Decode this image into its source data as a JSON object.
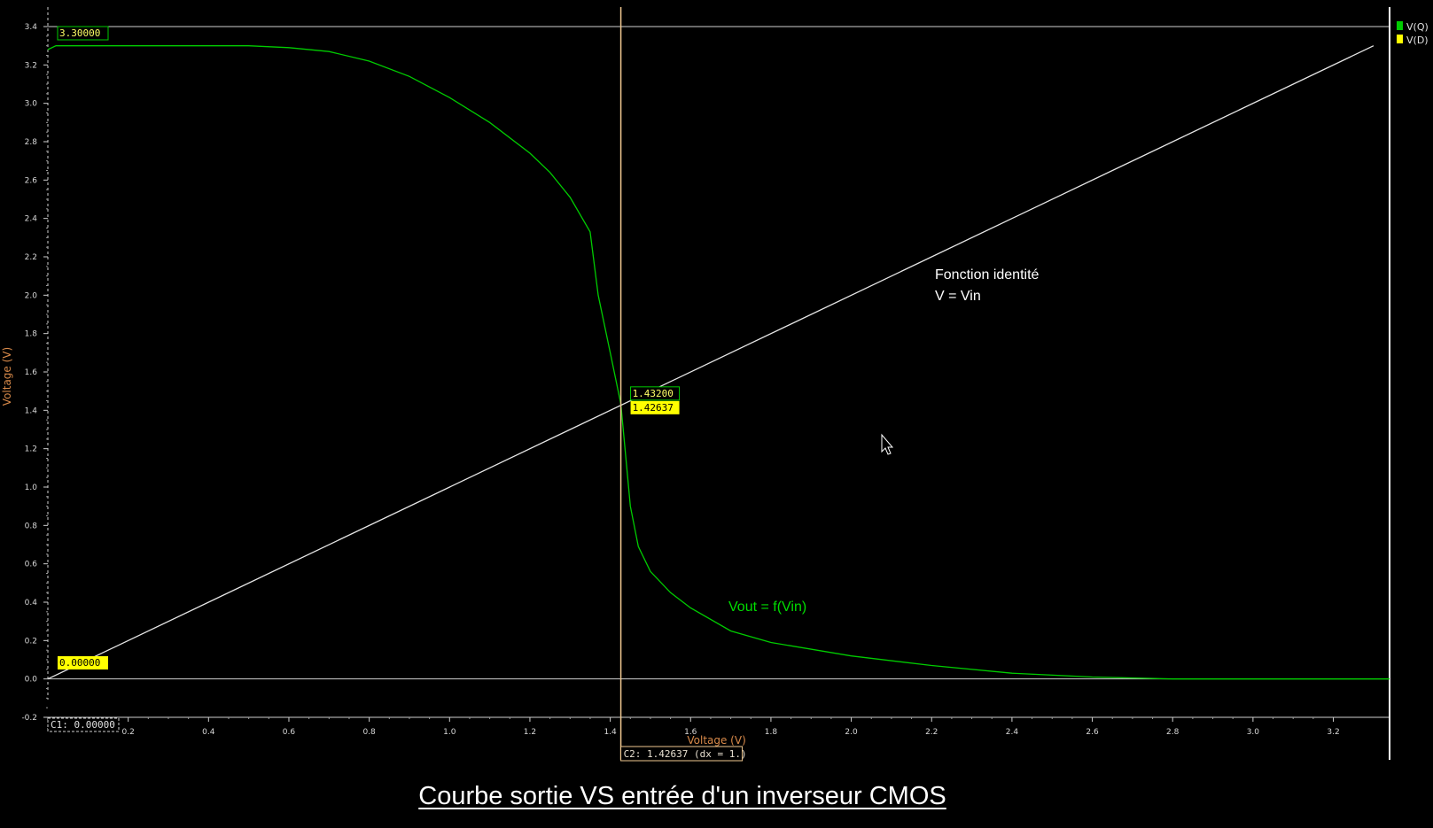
{
  "caption": "Courbe sortie VS entrée d'un inverseur CMOS",
  "legend": [
    {
      "name": "V(Q)",
      "color": "#00cc00"
    },
    {
      "name": "V(D)",
      "color": "#ffff00"
    }
  ],
  "cursors": {
    "c1_label": "C1: 0.00000",
    "c2_label": "C2: 1.42637 (dx = 1.)"
  },
  "value_labels": {
    "top_left": "3.30000",
    "bottom_left": "0.00000",
    "cross_green": "1.43200",
    "cross_yellow": "1.42637"
  },
  "annotations": {
    "identity_line1": "Fonction identité",
    "identity_line2": "V = Vin",
    "vout_label": "Vout = f(Vin)"
  },
  "colors": {
    "background": "#000000",
    "vout": "#00cc00",
    "identity": "#e6e6e6",
    "cursor": "#f0c890",
    "axis_title": "#d98a4a",
    "yellow": "#ffff00"
  },
  "chart_data": {
    "type": "line",
    "xlabel": "Voltage (V)",
    "ylabel": "Voltage (V)",
    "xlim": [
      0,
      3.34
    ],
    "ylim": [
      -0.2,
      3.4
    ],
    "x_ticks": [
      0.2,
      0.4,
      0.6,
      0.8,
      1.0,
      1.2,
      1.4,
      1.6,
      1.8,
      2.0,
      2.2,
      2.4,
      2.6,
      2.8,
      3.0,
      3.2
    ],
    "y_ticks": [
      -0.2,
      0.0,
      0.2,
      0.4,
      0.6,
      0.8,
      1.0,
      1.2,
      1.4,
      1.6,
      1.8,
      2.0,
      2.2,
      2.4,
      2.6,
      2.8,
      3.0,
      3.2,
      3.4
    ],
    "x_tick_labels": [
      "0.2",
      "0.4",
      "0.6",
      "0.8",
      "1.0",
      "1.2",
      "1.4",
      "1.6",
      "1.8",
      "2.0",
      "2.2",
      "2.4",
      "2.6",
      "2.8",
      "3.0",
      "3.2"
    ],
    "y_tick_labels": [
      "-0.2",
      "0.0",
      "0.2",
      "0.4",
      "0.6",
      "0.8",
      "1.0",
      "1.2",
      "1.4",
      "1.6",
      "1.8",
      "2.0",
      "2.2",
      "2.4",
      "2.6",
      "2.8",
      "3.0",
      "3.2",
      "3.4"
    ],
    "reference_lines_y": [
      0.0,
      3.4
    ],
    "cursor_x": 1.42637,
    "series": [
      {
        "name": "V(Q)",
        "color": "#00cc00",
        "x": [
          0.0,
          0.02,
          0.2,
          0.4,
          0.5,
          0.6,
          0.7,
          0.8,
          0.9,
          1.0,
          1.1,
          1.2,
          1.25,
          1.3,
          1.35,
          1.37,
          1.4,
          1.42637,
          1.45,
          1.47,
          1.5,
          1.55,
          1.6,
          1.7,
          1.8,
          2.0,
          2.2,
          2.4,
          2.6,
          2.8,
          3.0,
          3.2,
          3.34
        ],
        "y": [
          3.28,
          3.3,
          3.3,
          3.3,
          3.3,
          3.29,
          3.27,
          3.22,
          3.14,
          3.03,
          2.9,
          2.74,
          2.64,
          2.51,
          2.33,
          2.0,
          1.7,
          1.432,
          0.9,
          0.69,
          0.56,
          0.45,
          0.37,
          0.25,
          0.19,
          0.12,
          0.07,
          0.03,
          0.01,
          0.0,
          0.0,
          0.0,
          0.0
        ]
      },
      {
        "name": "V(D)",
        "color": "#e6e6e6",
        "x": [
          0.0,
          3.3
        ],
        "y": [
          0.0,
          3.3
        ]
      }
    ]
  }
}
